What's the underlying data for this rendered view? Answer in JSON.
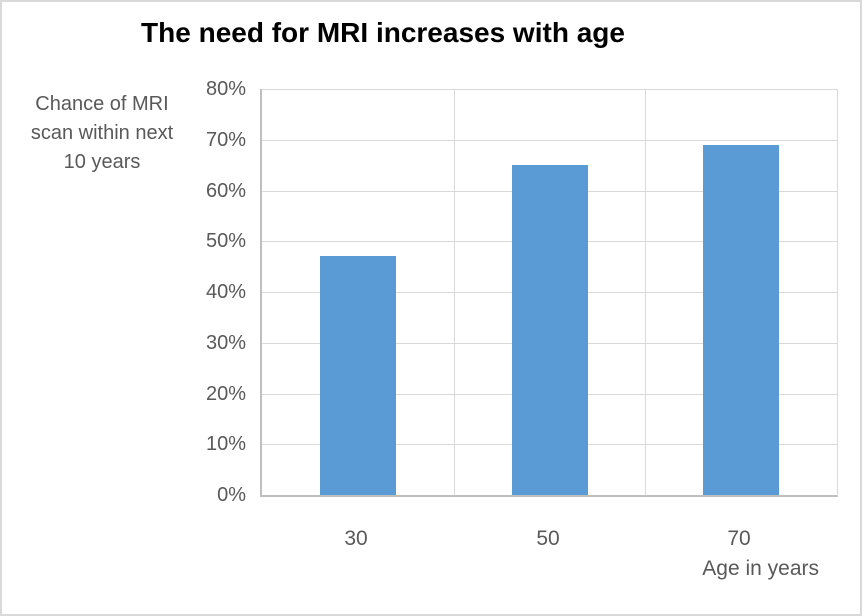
{
  "chart_data": {
    "type": "bar",
    "title": "The need for MRI increases with age",
    "categories": [
      "30",
      "50",
      "70"
    ],
    "values": [
      47,
      65,
      69
    ],
    "xlabel": "Age in years",
    "ylabel": "Chance of MRI\nscan within next\n10 years",
    "ylim": [
      0,
      80
    ],
    "y_ticks": [
      "0%",
      "10%",
      "20%",
      "30%",
      "40%",
      "50%",
      "60%",
      "70%",
      "80%"
    ],
    "grid": true,
    "legend": "none",
    "colors": {
      "bar": "#5b9bd5",
      "gridline": "#d9d9d9",
      "axis_line": "#bfbfbf",
      "axis_text": "#595959",
      "title_text": "#000000"
    }
  }
}
